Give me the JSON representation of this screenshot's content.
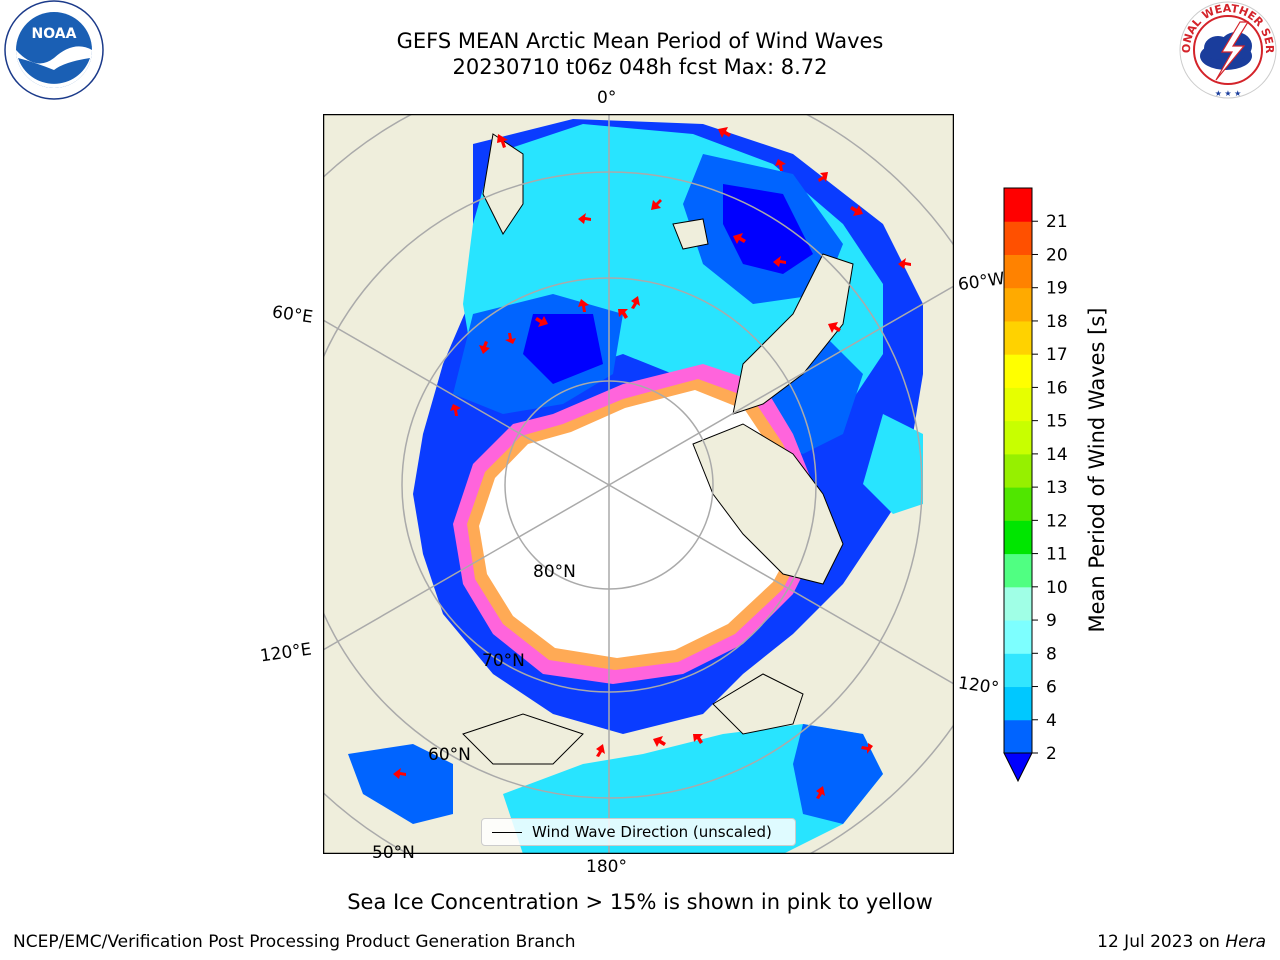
{
  "header": {
    "title_line1": "GEFS MEAN Arctic Mean Period of Wind Waves",
    "title_line2": "20230710 t06z 048h fcst   Max: 8.72"
  },
  "logos": {
    "left": "NOAA",
    "right": "NATIONAL WEATHER SERVICE"
  },
  "map": {
    "projection": "north-polar-stereographic",
    "lon_labels": [
      "0°",
      "60°E",
      "120°E",
      "180°",
      "120°",
      "60°W"
    ],
    "lat_labels": [
      "80°N",
      "70°N",
      "60°N",
      "50°N"
    ],
    "land_color": "#efeedc",
    "ice_color": "#ffffff",
    "arrow_color": "#ff0000"
  },
  "legend": {
    "entry": "Wind Wave Direction (unscaled)"
  },
  "colorbar": {
    "label": "Mean Period of Wind Waves [s]",
    "ticks": [
      "2",
      "4",
      "6",
      "8",
      "9",
      "10",
      "11",
      "12",
      "13",
      "14",
      "15",
      "16",
      "17",
      "18",
      "19",
      "20",
      "21"
    ],
    "colors": [
      "#0064ff",
      "#00c8ff",
      "#32e6ff",
      "#7dffff",
      "#a0ffe6",
      "#50ff82",
      "#00e600",
      "#50e600",
      "#96f000",
      "#c8ff00",
      "#e6ff00",
      "#ffff00",
      "#ffd200",
      "#ffaa00",
      "#ff8200",
      "#ff5000",
      "#ff0000"
    ],
    "under_color": "#0000ff"
  },
  "note": "Sea Ice Concentration > 15% is shown in pink to yellow",
  "footer": {
    "left": "NCEP/EMC/Verification Post Processing Product Generation Branch",
    "date": "12 Jul 2023 on ",
    "host": "Hera"
  }
}
